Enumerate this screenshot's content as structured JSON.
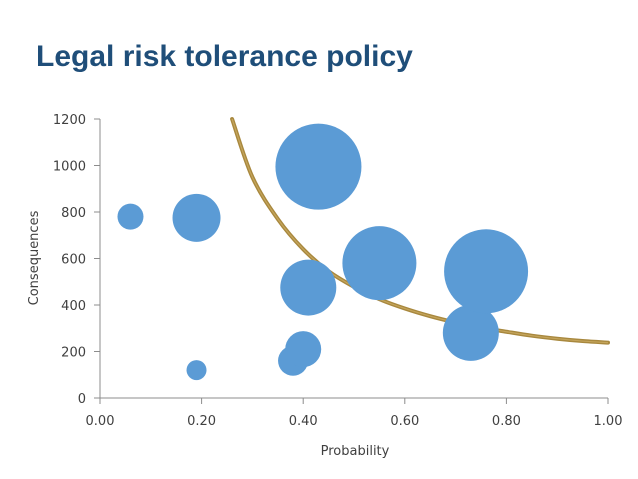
{
  "slide": {
    "title": "Legal risk tolerance policy"
  },
  "chart_data": {
    "type": "bubble",
    "xlabel": "Probability",
    "ylabel": "Consequences",
    "xlim": [
      0,
      1
    ],
    "ylim": [
      0,
      1200
    ],
    "x_ticks": [
      "0.00",
      "0.20",
      "0.40",
      "0.60",
      "0.80",
      "1.00"
    ],
    "x_tick_values": [
      0,
      0.2,
      0.4,
      0.6,
      0.8,
      1.0
    ],
    "y_ticks": [
      "0",
      "200",
      "400",
      "600",
      "800",
      "1000",
      "1200"
    ],
    "y_tick_values": [
      0,
      200,
      400,
      600,
      800,
      1000,
      1200
    ],
    "grid": false,
    "bubble_color": "#5b9bd5",
    "curve_color": "#a8883e",
    "points": [
      {
        "x": 0.06,
        "y": 780,
        "size": 13
      },
      {
        "x": 0.19,
        "y": 775,
        "size": 24
      },
      {
        "x": 0.19,
        "y": 120,
        "size": 10
      },
      {
        "x": 0.38,
        "y": 160,
        "size": 15
      },
      {
        "x": 0.4,
        "y": 210,
        "size": 18
      },
      {
        "x": 0.41,
        "y": 475,
        "size": 28
      },
      {
        "x": 0.43,
        "y": 995,
        "size": 43
      },
      {
        "x": 0.55,
        "y": 580,
        "size": 37
      },
      {
        "x": 0.73,
        "y": 280,
        "size": 28
      },
      {
        "x": 0.76,
        "y": 545,
        "size": 42
      }
    ],
    "tolerance_curve": {
      "x": [
        0.26,
        0.3,
        0.35,
        0.4,
        0.45,
        0.5,
        0.55,
        0.6,
        0.65,
        0.7,
        0.75,
        0.8,
        0.85,
        0.9,
        0.95,
        1.0
      ],
      "y": [
        1200,
        950,
        770,
        640,
        545,
        478,
        425,
        385,
        352,
        325,
        303,
        285,
        268,
        255,
        245,
        238
      ]
    }
  }
}
